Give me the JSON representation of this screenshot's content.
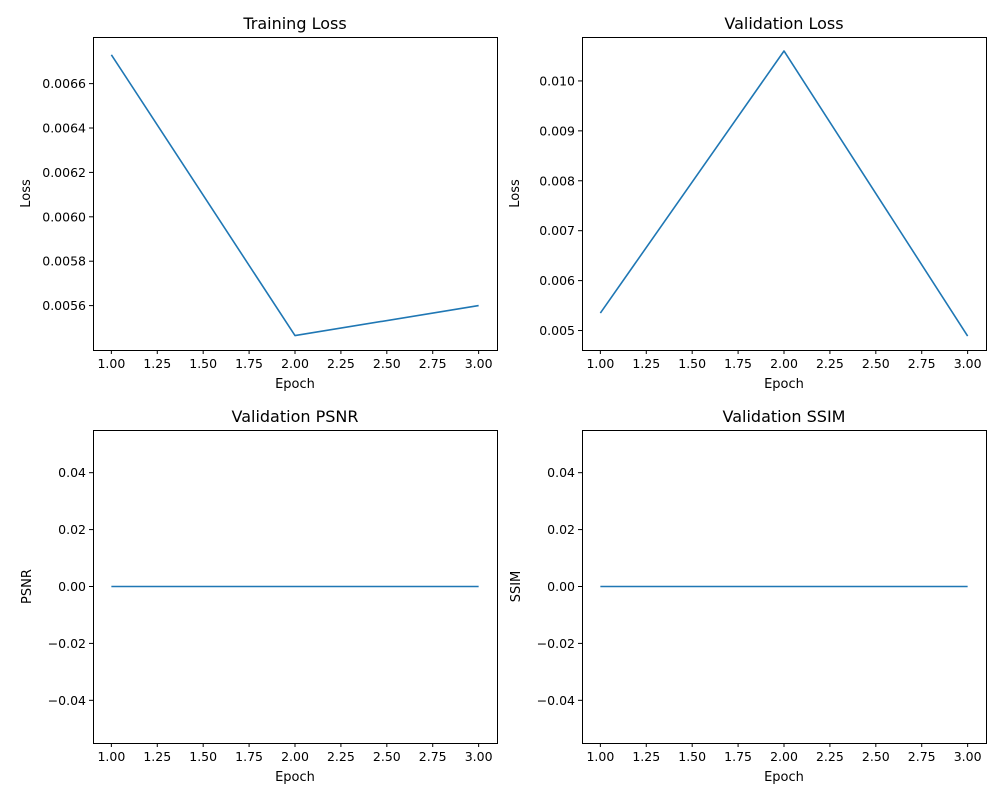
{
  "chart_data": [
    {
      "type": "line",
      "title": "Training Loss",
      "xlabel": "Epoch",
      "ylabel": "Loss",
      "x": [
        1,
        2,
        3
      ],
      "series": [
        {
          "values": [
            0.00673,
            0.005465,
            0.0056
          ]
        }
      ],
      "xlim": [
        0.9,
        3.1
      ],
      "ylim": [
        0.0054,
        0.00681
      ],
      "xticks": [
        "1.00",
        "1.25",
        "1.50",
        "1.75",
        "2.00",
        "2.25",
        "2.50",
        "2.75",
        "3.00"
      ],
      "yticks": [
        "0.0056",
        "0.0058",
        "0.0060",
        "0.0062",
        "0.0064",
        "0.0066"
      ],
      "grid": false
    },
    {
      "type": "line",
      "title": "Validation Loss",
      "xlabel": "Epoch",
      "ylabel": "Loss",
      "x": [
        1,
        2,
        3
      ],
      "series": [
        {
          "values": [
            0.00535,
            0.0106,
            0.00489
          ]
        }
      ],
      "xlim": [
        0.9,
        3.1
      ],
      "ylim": [
        0.00461,
        0.01088
      ],
      "xticks": [
        "1.00",
        "1.25",
        "1.50",
        "1.75",
        "2.00",
        "2.25",
        "2.50",
        "2.75",
        "3.00"
      ],
      "yticks": [
        "0.005",
        "0.006",
        "0.007",
        "0.008",
        "0.009",
        "0.010"
      ],
      "grid": false
    },
    {
      "type": "line",
      "title": "Validation PSNR",
      "xlabel": "Epoch",
      "ylabel": "PSNR",
      "x": [
        1,
        2,
        3
      ],
      "series": [
        {
          "values": [
            0,
            0,
            0
          ]
        }
      ],
      "xlim": [
        0.9,
        3.1
      ],
      "ylim": [
        -0.055,
        0.055
      ],
      "xticks": [
        "1.00",
        "1.25",
        "1.50",
        "1.75",
        "2.00",
        "2.25",
        "2.50",
        "2.75",
        "3.00"
      ],
      "yticks": [
        "−0.04",
        "−0.02",
        "0.00",
        "0.02",
        "0.04"
      ],
      "grid": false
    },
    {
      "type": "line",
      "title": "Validation SSIM",
      "xlabel": "Epoch",
      "ylabel": "SSIM",
      "x": [
        1,
        2,
        3
      ],
      "series": [
        {
          "values": [
            0,
            0,
            0
          ]
        }
      ],
      "xlim": [
        0.9,
        3.1
      ],
      "ylim": [
        -0.055,
        0.055
      ],
      "xticks": [
        "1.00",
        "1.25",
        "1.50",
        "1.75",
        "2.00",
        "2.25",
        "2.50",
        "2.75",
        "3.00"
      ],
      "yticks": [
        "−0.04",
        "−0.02",
        "0.00",
        "0.02",
        "0.04"
      ],
      "grid": false
    }
  ],
  "colors": {
    "line": "#1f77b4",
    "axes": "#000000"
  }
}
